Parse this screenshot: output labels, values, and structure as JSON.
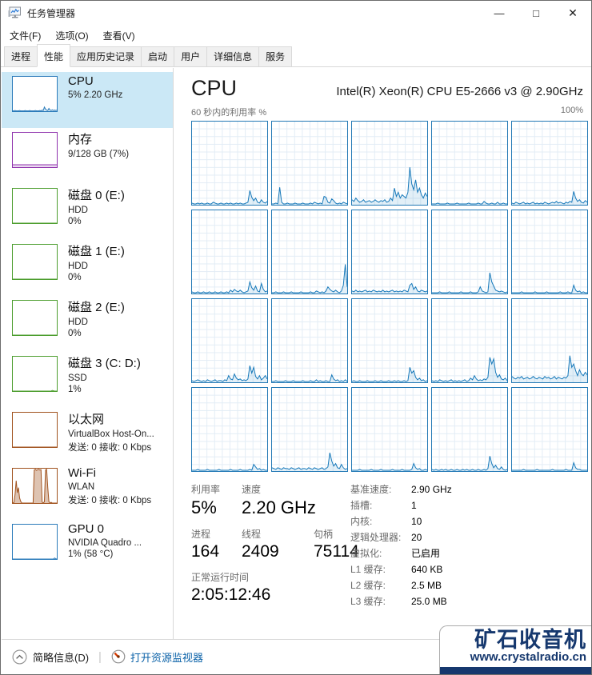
{
  "titlebar": {
    "title": "任务管理器",
    "minimize": "—",
    "maximize": "□",
    "close": "✕"
  },
  "menu": {
    "items": [
      "文件(F)",
      "选项(O)",
      "查看(V)"
    ]
  },
  "tabs": {
    "items": [
      {
        "label": "进程",
        "selected": false
      },
      {
        "label": "性能",
        "selected": true
      },
      {
        "label": "应用历史记录",
        "selected": false
      },
      {
        "label": "启动",
        "selected": false
      },
      {
        "label": "用户",
        "selected": false
      },
      {
        "label": "详细信息",
        "selected": false
      },
      {
        "label": "服务",
        "selected": false
      }
    ]
  },
  "sidebar": {
    "items": [
      {
        "id": "cpu",
        "title": "CPU",
        "line2": "5% 2.20 GHz",
        "line3": "",
        "color": "#2b7bba",
        "fill": "rgba(17,125,187,0.18)",
        "selected": true,
        "chart": "cpu"
      },
      {
        "id": "memory",
        "title": "内存",
        "line2": "9/128 GB (7%)",
        "line3": "",
        "color": "#8f32ad",
        "fill": "rgba(143,50,173,0.18)",
        "selected": false,
        "chart": "memory"
      },
      {
        "id": "disk0",
        "title": "磁盘 0 (E:)",
        "line2": "HDD",
        "line3": "0%",
        "color": "#4d9e2f",
        "fill": "rgba(77,158,47,0.18)",
        "selected": false,
        "chart": "disk0"
      },
      {
        "id": "disk1",
        "title": "磁盘 1 (E:)",
        "line2": "HDD",
        "line3": "0%",
        "color": "#4d9e2f",
        "fill": "rgba(77,158,47,0.18)",
        "selected": false,
        "chart": "disk1"
      },
      {
        "id": "disk2",
        "title": "磁盘 2 (E:)",
        "line2": "HDD",
        "line3": "0%",
        "color": "#4d9e2f",
        "fill": "rgba(77,158,47,0.18)",
        "selected": false,
        "chart": "disk2"
      },
      {
        "id": "disk3",
        "title": "磁盘 3 (C: D:)",
        "line2": "SSD",
        "line3": "1%",
        "color": "#4d9e2f",
        "fill": "rgba(77,158,47,0.18)",
        "selected": false,
        "chart": "disk3"
      },
      {
        "id": "ethernet",
        "title": "以太网",
        "line2": "VirtualBox Host-On...",
        "line3": "发送: 0 接收: 0 Kbps",
        "color": "#a1531f",
        "fill": "rgba(161,83,31,0.25)",
        "selected": false,
        "chart": "ethernet"
      },
      {
        "id": "wifi",
        "title": "Wi-Fi",
        "line2": "WLAN",
        "line3": "发送: 0 接收: 0 Kbps",
        "color": "#a1531f",
        "fill": "rgba(161,83,31,0.35)",
        "selected": false,
        "chart": "wifi"
      },
      {
        "id": "gpu",
        "title": "GPU 0",
        "line2": "NVIDIA Quadro ...",
        "line3": "1% (58 °C)",
        "color": "#2b7bba",
        "fill": "rgba(17,125,187,0.18)",
        "selected": false,
        "chart": "gpu"
      }
    ]
  },
  "main": {
    "title": "CPU",
    "subtitle": "Intel(R) Xeon(R) CPU E5-2666 v3 @ 2.90GHz",
    "axis_left": "60 秒内的利用率 %",
    "axis_right": "100%"
  },
  "stats_left": {
    "u_label": "利用率",
    "u_value": "5%",
    "s_label": "速度",
    "s_value": "2.20 GHz",
    "p_label": "进程",
    "p_value": "164",
    "t_label": "线程",
    "t_value": "2409",
    "h_label": "句柄",
    "h_value": "75114",
    "up_label": "正常运行时间",
    "up_value": "2:05:12:46"
  },
  "stats_right": {
    "rows": [
      {
        "label": "基准速度:",
        "value": "2.90 GHz"
      },
      {
        "label": "插槽:",
        "value": "1"
      },
      {
        "label": "内核:",
        "value": "10"
      },
      {
        "label": "逻辑处理器:",
        "value": "20"
      },
      {
        "label": "虚拟化:",
        "value": "已启用"
      },
      {
        "label": "L1 缓存:",
        "value": "640 KB"
      },
      {
        "label": "L2 缓存:",
        "value": "2.5 MB"
      },
      {
        "label": "L3 缓存:",
        "value": "25.0 MB"
      }
    ]
  },
  "statusbar": {
    "details_label": "简略信息(D)",
    "separator": "|",
    "link_label": "打开资源监视器"
  },
  "watermark": {
    "title": "矿石收音机",
    "url": "www.crystalradio.cn"
  },
  "colors": {
    "accent_blue": "#1779ba",
    "selected_bg": "#cbe8f6",
    "memory_purple": "#8f32ad",
    "disk_green": "#4d9e2f",
    "net_brown": "#a1531f",
    "link_blue": "#0b62a8",
    "watermark_navy": "#16386e"
  },
  "chart_data": {
    "type": "line",
    "title": "CPU 每个逻辑处理器的利用率",
    "unit": "%",
    "ylim": [
      0,
      100
    ],
    "window_seconds": 60,
    "grid": true,
    "cores": {
      "core01": [
        2,
        1,
        1,
        2,
        1,
        2,
        1,
        1,
        2,
        1,
        1,
        3,
        2,
        1,
        1,
        2,
        1,
        1,
        2,
        1,
        2,
        1,
        1,
        2,
        1,
        2,
        1,
        1,
        2,
        3,
        17,
        9,
        5,
        8,
        3,
        2,
        6,
        3,
        2,
        4
      ],
      "core02": [
        1,
        1,
        2,
        1,
        21,
        3,
        1,
        1,
        2,
        1,
        1,
        1,
        2,
        1,
        1,
        1,
        2,
        1,
        1,
        1,
        2,
        1,
        3,
        2,
        1,
        2,
        1,
        10,
        9,
        3,
        2,
        7,
        5,
        2,
        1,
        2,
        1,
        3,
        2,
        1
      ],
      "core03": [
        6,
        4,
        8,
        5,
        3,
        4,
        6,
        3,
        4,
        5,
        3,
        4,
        6,
        4,
        3,
        5,
        4,
        6,
        3,
        4,
        8,
        5,
        20,
        10,
        15,
        8,
        12,
        10,
        8,
        15,
        45,
        25,
        18,
        30,
        15,
        20,
        12,
        8,
        14,
        10
      ],
      "core04": [
        1,
        1,
        1,
        2,
        1,
        1,
        1,
        1,
        2,
        1,
        1,
        1,
        1,
        2,
        1,
        1,
        1,
        1,
        1,
        2,
        1,
        1,
        1,
        1,
        2,
        1,
        1,
        4,
        2,
        1,
        1,
        2,
        1,
        1,
        3,
        1,
        1,
        2,
        1,
        1
      ],
      "core05": [
        2,
        1,
        3,
        2,
        1,
        2,
        3,
        1,
        2,
        1,
        2,
        3,
        1,
        2,
        1,
        2,
        1,
        3,
        2,
        1,
        2,
        3,
        2,
        4,
        2,
        3,
        2,
        1,
        3,
        2,
        4,
        3,
        16,
        8,
        4,
        6,
        3,
        2,
        5,
        3
      ],
      "core06": [
        2,
        1,
        1,
        2,
        1,
        1,
        2,
        1,
        1,
        2,
        1,
        1,
        2,
        1,
        1,
        2,
        1,
        1,
        2,
        1,
        4,
        2,
        5,
        3,
        2,
        4,
        2,
        1,
        2,
        3,
        14,
        7,
        4,
        9,
        3,
        2,
        12,
        5,
        2,
        3
      ],
      "core07": [
        1,
        1,
        2,
        1,
        1,
        1,
        2,
        1,
        1,
        1,
        2,
        1,
        1,
        1,
        1,
        2,
        1,
        1,
        1,
        1,
        2,
        1,
        1,
        3,
        2,
        1,
        2,
        1,
        3,
        8,
        5,
        3,
        2,
        4,
        2,
        1,
        3,
        10,
        35,
        8
      ],
      "core08": [
        3,
        2,
        4,
        2,
        3,
        2,
        3,
        4,
        2,
        3,
        2,
        4,
        3,
        2,
        3,
        2,
        4,
        2,
        3,
        2,
        3,
        4,
        2,
        3,
        2,
        3,
        2,
        4,
        3,
        2,
        10,
        12,
        5,
        8,
        3,
        2,
        4,
        3,
        2,
        3
      ],
      "core09": [
        1,
        1,
        1,
        1,
        2,
        1,
        1,
        1,
        1,
        2,
        1,
        1,
        1,
        1,
        1,
        2,
        1,
        1,
        1,
        1,
        2,
        1,
        1,
        1,
        2,
        8,
        3,
        2,
        1,
        2,
        25,
        14,
        9,
        4,
        3,
        2,
        3,
        2,
        1,
        2
      ],
      "core10": [
        1,
        1,
        1,
        1,
        1,
        2,
        1,
        1,
        1,
        1,
        1,
        1,
        2,
        1,
        1,
        1,
        1,
        1,
        2,
        1,
        1,
        1,
        1,
        1,
        1,
        2,
        1,
        1,
        1,
        2,
        1,
        1,
        10,
        4,
        2,
        3,
        1,
        2,
        1,
        1
      ],
      "core11": [
        2,
        1,
        2,
        3,
        2,
        1,
        2,
        1,
        3,
        2,
        1,
        2,
        3,
        1,
        2,
        2,
        1,
        3,
        2,
        8,
        4,
        3,
        10,
        5,
        3,
        4,
        2,
        3,
        2,
        4,
        20,
        11,
        18,
        7,
        4,
        8,
        3,
        5,
        8,
        4
      ],
      "core12": [
        1,
        1,
        2,
        1,
        1,
        1,
        1,
        2,
        1,
        1,
        1,
        2,
        1,
        1,
        1,
        1,
        2,
        1,
        1,
        1,
        2,
        1,
        1,
        3,
        1,
        2,
        1,
        1,
        2,
        1,
        1,
        9,
        4,
        2,
        3,
        1,
        2,
        1,
        3,
        1
      ],
      "core13": [
        1,
        2,
        1,
        1,
        2,
        1,
        1,
        1,
        2,
        1,
        1,
        1,
        2,
        1,
        1,
        2,
        1,
        1,
        1,
        2,
        1,
        1,
        2,
        1,
        2,
        1,
        1,
        2,
        1,
        2,
        18,
        11,
        14,
        6,
        3,
        5,
        2,
        3,
        1,
        2
      ],
      "core14": [
        2,
        1,
        2,
        1,
        3,
        2,
        1,
        2,
        1,
        2,
        3,
        1,
        2,
        1,
        2,
        1,
        2,
        3,
        1,
        2,
        5,
        3,
        8,
        4,
        2,
        3,
        2,
        4,
        3,
        6,
        30,
        22,
        28,
        12,
        6,
        9,
        4,
        3,
        5,
        2
      ],
      "core15": [
        7,
        5,
        4,
        6,
        5,
        7,
        4,
        5,
        6,
        4,
        5,
        7,
        5,
        4,
        6,
        5,
        4,
        7,
        5,
        6,
        4,
        5,
        7,
        4,
        6,
        5,
        4,
        6,
        5,
        8,
        32,
        18,
        22,
        14,
        8,
        15,
        10,
        8,
        12,
        9
      ],
      "core16": [
        1,
        1,
        1,
        2,
        1,
        1,
        1,
        1,
        2,
        1,
        1,
        1,
        1,
        1,
        2,
        1,
        1,
        1,
        1,
        1,
        2,
        1,
        1,
        1,
        1,
        2,
        1,
        1,
        1,
        1,
        2,
        1,
        8,
        5,
        2,
        3,
        1,
        2,
        1,
        1
      ],
      "core17": [
        4,
        3,
        2,
        4,
        3,
        2,
        4,
        3,
        3,
        2,
        4,
        3,
        2,
        3,
        4,
        2,
        3,
        3,
        2,
        4,
        3,
        2,
        4,
        3,
        2,
        3,
        4,
        2,
        3,
        5,
        22,
        12,
        6,
        9,
        4,
        3,
        8,
        4,
        2,
        3
      ],
      "core18": [
        1,
        1,
        1,
        1,
        2,
        1,
        1,
        1,
        1,
        1,
        2,
        1,
        1,
        1,
        1,
        2,
        1,
        1,
        1,
        1,
        1,
        2,
        1,
        1,
        1,
        1,
        2,
        1,
        1,
        1,
        1,
        2,
        9,
        4,
        2,
        3,
        1,
        1,
        2,
        1
      ],
      "core19": [
        2,
        1,
        2,
        1,
        1,
        2,
        1,
        2,
        1,
        1,
        2,
        1,
        1,
        2,
        1,
        1,
        2,
        1,
        2,
        1,
        1,
        2,
        1,
        1,
        2,
        1,
        1,
        2,
        1,
        3,
        18,
        9,
        4,
        7,
        3,
        2,
        5,
        2,
        1,
        2
      ],
      "core20": [
        1,
        1,
        1,
        1,
        1,
        1,
        2,
        1,
        1,
        1,
        1,
        1,
        1,
        2,
        1,
        1,
        1,
        1,
        1,
        1,
        1,
        2,
        1,
        1,
        1,
        1,
        1,
        1,
        2,
        1,
        1,
        1,
        10,
        4,
        2,
        2,
        1,
        1,
        1,
        1
      ]
    },
    "thumbs": {
      "cpu": [
        1,
        1,
        2,
        1,
        1,
        1,
        2,
        1,
        1,
        1,
        1,
        2,
        1,
        1,
        1,
        2,
        1,
        1,
        1,
        1,
        2,
        1,
        1,
        1,
        2,
        1,
        3,
        2,
        12,
        6,
        3,
        2,
        8,
        3,
        2,
        4,
        2,
        3,
        2,
        3
      ],
      "memory": [
        7,
        7,
        7,
        7,
        7,
        7,
        7,
        7,
        7,
        7,
        7,
        7,
        7,
        7,
        7,
        7,
        7,
        7,
        7,
        7,
        7,
        7,
        7,
        7,
        7,
        7,
        7,
        7,
        7,
        7,
        7,
        7,
        7,
        7,
        7,
        7,
        7,
        7,
        7,
        7
      ],
      "disk0": [
        0,
        0,
        0,
        0,
        0,
        0,
        0,
        0,
        0,
        0,
        0,
        0,
        0,
        0,
        0,
        0,
        0,
        0,
        0,
        0,
        0,
        0,
        0,
        0,
        0,
        0,
        0,
        0,
        0,
        0,
        0,
        0,
        0,
        0,
        0,
        0,
        0,
        0,
        0,
        0
      ],
      "disk1": [
        0,
        0,
        0,
        0,
        0,
        0,
        0,
        0,
        0,
        0,
        0,
        0,
        0,
        0,
        0,
        0,
        0,
        0,
        0,
        0,
        0,
        0,
        0,
        0,
        0,
        0,
        0,
        0,
        0,
        0,
        0,
        0,
        0,
        0,
        0,
        0,
        0,
        0,
        0,
        0
      ],
      "disk2": [
        0,
        0,
        0,
        0,
        0,
        0,
        0,
        0,
        0,
        0,
        0,
        0,
        0,
        0,
        0,
        0,
        0,
        0,
        0,
        0,
        0,
        0,
        0,
        0,
        0,
        0,
        0,
        0,
        0,
        0,
        0,
        0,
        0,
        0,
        0,
        0,
        0,
        0,
        0,
        0
      ],
      "disk3": [
        0,
        0,
        0,
        0,
        0,
        0,
        0,
        0,
        0,
        0,
        0,
        0,
        0,
        0,
        0,
        0,
        0,
        0,
        0,
        0,
        0,
        0,
        0,
        0,
        0,
        0,
        0,
        0,
        0,
        0,
        0,
        0,
        0,
        0,
        0,
        2,
        1,
        0,
        0,
        0
      ],
      "ethernet": [
        0,
        0,
        0,
        0,
        0,
        0,
        0,
        0,
        0,
        0,
        0,
        0,
        0,
        0,
        0,
        0,
        0,
        0,
        0,
        0,
        0,
        0,
        0,
        0,
        0,
        0,
        0,
        0,
        0,
        0,
        0,
        0,
        0,
        0,
        0,
        0,
        0,
        0,
        0,
        0
      ],
      "wifi": [
        0,
        2,
        25,
        65,
        30,
        45,
        15,
        5,
        0,
        0,
        0,
        0,
        0,
        0,
        0,
        0,
        0,
        0,
        0,
        96,
        98,
        95,
        97,
        98,
        96,
        97,
        3,
        0,
        4,
        96,
        98,
        45,
        4,
        0,
        2,
        0,
        0,
        0,
        0,
        0
      ],
      "gpu": [
        0,
        0,
        0,
        0,
        0,
        0,
        0,
        0,
        0,
        0,
        0,
        0,
        0,
        0,
        0,
        0,
        0,
        0,
        0,
        0,
        0,
        0,
        0,
        0,
        0,
        0,
        0,
        0,
        0,
        0,
        0,
        0,
        0,
        0,
        0,
        0,
        0,
        3,
        1,
        0
      ]
    }
  }
}
